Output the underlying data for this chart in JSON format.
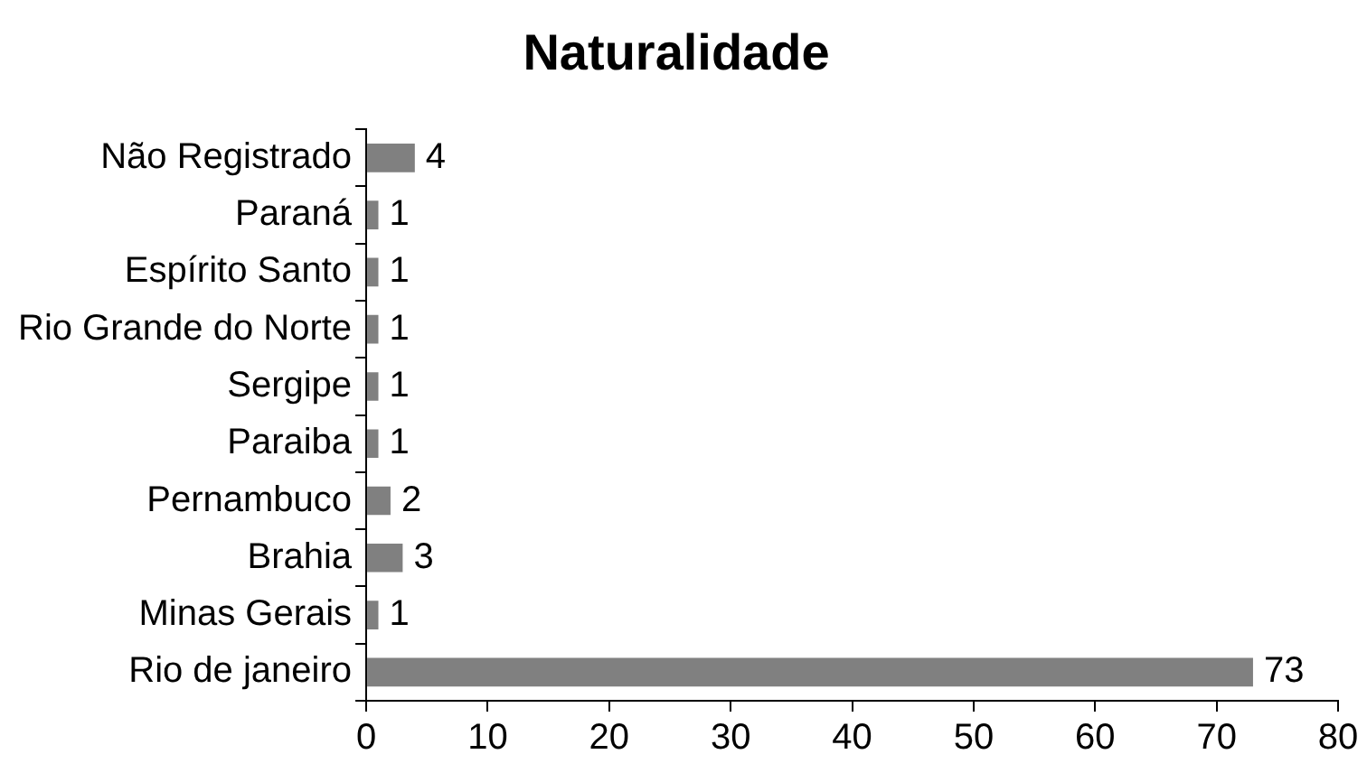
{
  "chart_data": {
    "type": "bar",
    "orientation": "horizontal",
    "title": "Naturalidade",
    "categories": [
      "Não Registrado",
      "Paraná",
      "Espírito Santo",
      "Rio Grande do Norte",
      "Sergipe",
      "Paraiba",
      "Pernambuco",
      "Brahia",
      "Minas Gerais",
      "Rio de janeiro"
    ],
    "values": [
      4,
      1,
      1,
      1,
      1,
      1,
      2,
      3,
      1,
      73
    ],
    "color": "#808080",
    "xlim": [
      0,
      80
    ],
    "xticks": [
      0,
      10,
      20,
      30,
      40,
      50,
      60,
      70,
      80
    ],
    "grid": false,
    "legend": false,
    "data_labels": true
  }
}
